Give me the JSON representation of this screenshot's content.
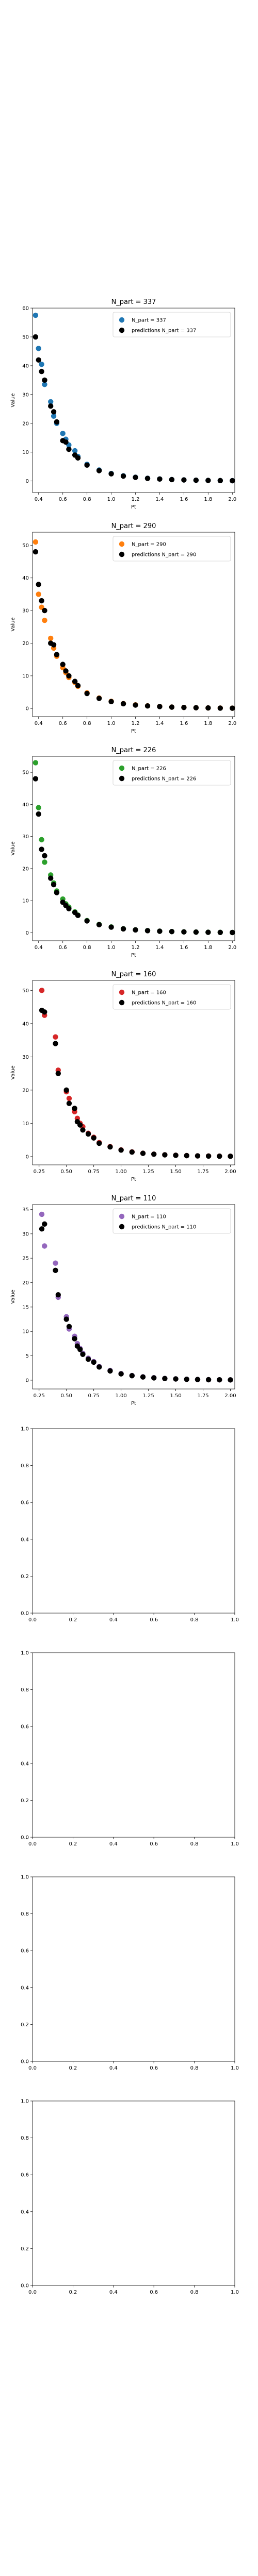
{
  "chart_data": [
    {
      "type": "scatter",
      "title": "N_part = 337",
      "xlabel": "Pt",
      "ylabel": "Value",
      "xlim": [
        0.35,
        2.02
      ],
      "ylim": [
        -4,
        60
      ],
      "xticks": [
        0.4,
        0.6,
        0.8,
        1.0,
        1.2,
        1.4,
        1.6,
        1.8,
        2.0
      ],
      "xticklabels": [
        "0.4",
        "0.6",
        "0.8",
        "1.0",
        "1.2",
        "1.4",
        "1.6",
        "1.8",
        "2.0"
      ],
      "yticks": [
        0,
        10,
        20,
        30,
        40,
        50,
        60
      ],
      "yticklabels": [
        "0",
        "10",
        "20",
        "30",
        "40",
        "50",
        "60"
      ],
      "legend_position": "upper-right",
      "series": [
        {
          "name": "N_part = 337",
          "color": "#1f77b4",
          "x": [
            0.375,
            0.4,
            0.425,
            0.45,
            0.5,
            0.525,
            0.55,
            0.6,
            0.625,
            0.65,
            0.7,
            0.725,
            0.8,
            0.9,
            1.0,
            1.1,
            1.2,
            1.3,
            1.4,
            1.5,
            1.6,
            1.7,
            1.8,
            1.9,
            2.0
          ],
          "y": [
            57.5,
            46.0,
            40.5,
            33.5,
            27.5,
            22.5,
            20.0,
            16.5,
            14.5,
            12.5,
            10.5,
            8.5,
            5.8,
            3.8,
            2.6,
            1.8,
            1.3,
            0.95,
            0.7,
            0.5,
            0.38,
            0.28,
            0.2,
            0.15,
            0.11
          ]
        },
        {
          "name": "predictions N_part = 337",
          "color": "#000000",
          "x": [
            0.375,
            0.4,
            0.425,
            0.45,
            0.5,
            0.525,
            0.55,
            0.6,
            0.625,
            0.65,
            0.7,
            0.725,
            0.8,
            0.9,
            1.0,
            1.1,
            1.2,
            1.3,
            1.4,
            1.5,
            1.6,
            1.7,
            1.8,
            1.9,
            2.0
          ],
          "y": [
            50.0,
            42.0,
            38.0,
            35.0,
            26.0,
            24.0,
            20.5,
            14.0,
            13.5,
            11.0,
            9.0,
            8.0,
            5.5,
            3.6,
            2.5,
            1.7,
            1.25,
            0.9,
            0.68,
            0.48,
            0.36,
            0.27,
            0.2,
            0.14,
            0.1
          ]
        }
      ]
    },
    {
      "type": "scatter",
      "title": "N_part = 290",
      "xlabel": "Pt",
      "ylabel": "Value",
      "xlim": [
        0.35,
        2.02
      ],
      "ylim": [
        -2.5,
        54
      ],
      "xticks": [
        0.4,
        0.6,
        0.8,
        1.0,
        1.2,
        1.4,
        1.6,
        1.8,
        2.0
      ],
      "xticklabels": [
        "0.4",
        "0.6",
        "0.8",
        "1.0",
        "1.2",
        "1.4",
        "1.6",
        "1.8",
        "2.0"
      ],
      "yticks": [
        0,
        10,
        20,
        30,
        40,
        50
      ],
      "yticklabels": [
        "0",
        "10",
        "20",
        "30",
        "40",
        "50"
      ],
      "legend_position": "upper-right",
      "series": [
        {
          "name": "N_part = 290",
          "color": "#ff7f0e",
          "x": [
            0.375,
            0.4,
            0.425,
            0.45,
            0.5,
            0.525,
            0.55,
            0.6,
            0.625,
            0.65,
            0.7,
            0.725,
            0.8,
            0.9,
            1.0,
            1.1,
            1.2,
            1.3,
            1.4,
            1.5,
            1.6,
            1.7,
            1.8,
            1.9,
            2.0
          ],
          "y": [
            51.0,
            35.0,
            31.0,
            27.0,
            21.5,
            18.5,
            16.0,
            12.5,
            11.0,
            9.5,
            8.0,
            6.8,
            4.8,
            3.2,
            2.2,
            1.5,
            1.1,
            0.8,
            0.6,
            0.43,
            0.32,
            0.24,
            0.17,
            0.13,
            0.1
          ]
        },
        {
          "name": "predictions N_part = 290",
          "color": "#000000",
          "x": [
            0.375,
            0.4,
            0.425,
            0.45,
            0.5,
            0.525,
            0.55,
            0.6,
            0.625,
            0.65,
            0.7,
            0.725,
            0.8,
            0.9,
            1.0,
            1.1,
            1.2,
            1.3,
            1.4,
            1.5,
            1.6,
            1.7,
            1.8,
            1.9,
            2.0
          ],
          "y": [
            48.0,
            38.0,
            33.0,
            30.0,
            20.0,
            19.5,
            16.5,
            13.5,
            11.5,
            10.0,
            8.3,
            7.0,
            4.6,
            3.1,
            2.1,
            1.45,
            1.05,
            0.78,
            0.58,
            0.42,
            0.31,
            0.23,
            0.17,
            0.12,
            0.09
          ]
        }
      ]
    },
    {
      "type": "scatter",
      "title": "N_part = 226",
      "xlabel": "Pt",
      "ylabel": "Value",
      "xlim": [
        0.35,
        2.02
      ],
      "ylim": [
        -2.5,
        55
      ],
      "xticks": [
        0.4,
        0.6,
        0.8,
        1.0,
        1.2,
        1.4,
        1.6,
        1.8,
        2.0
      ],
      "xticklabels": [
        "0.4",
        "0.6",
        "0.8",
        "1.0",
        "1.2",
        "1.4",
        "1.6",
        "1.8",
        "2.0"
      ],
      "yticks": [
        0,
        10,
        20,
        30,
        40,
        50
      ],
      "yticklabels": [
        "0",
        "10",
        "20",
        "30",
        "40",
        "50"
      ],
      "legend_position": "upper-right",
      "series": [
        {
          "name": "N_part = 226",
          "color": "#2ca02c",
          "x": [
            0.375,
            0.4,
            0.425,
            0.45,
            0.5,
            0.525,
            0.55,
            0.6,
            0.625,
            0.65,
            0.7,
            0.725,
            0.8,
            0.9,
            1.0,
            1.1,
            1.2,
            1.3,
            1.4,
            1.5,
            1.6,
            1.7,
            1.8,
            1.9,
            2.0
          ],
          "y": [
            53.0,
            39.0,
            29.0,
            22.0,
            18.0,
            15.5,
            13.0,
            10.5,
            9.0,
            8.0,
            6.5,
            5.5,
            3.8,
            2.6,
            1.8,
            1.25,
            0.9,
            0.66,
            0.48,
            0.36,
            0.27,
            0.2,
            0.15,
            0.11,
            0.08
          ]
        },
        {
          "name": "predictions N_part = 226",
          "color": "#000000",
          "x": [
            0.375,
            0.4,
            0.425,
            0.45,
            0.5,
            0.525,
            0.55,
            0.6,
            0.625,
            0.65,
            0.7,
            0.725,
            0.8,
            0.9,
            1.0,
            1.1,
            1.2,
            1.3,
            1.4,
            1.5,
            1.6,
            1.7,
            1.8,
            1.9,
            2.0
          ],
          "y": [
            48.0,
            37.0,
            26.0,
            24.0,
            17.0,
            15.0,
            12.5,
            9.5,
            8.5,
            7.5,
            6.3,
            5.4,
            3.7,
            2.5,
            1.75,
            1.2,
            0.88,
            0.64,
            0.47,
            0.35,
            0.26,
            0.19,
            0.14,
            0.1,
            0.08
          ]
        }
      ]
    },
    {
      "type": "scatter",
      "title": "N_part = 160",
      "xlabel": "Pt",
      "ylabel": "Value",
      "xlim": [
        0.19,
        2.04
      ],
      "ylim": [
        -2.5,
        53
      ],
      "xticks": [
        0.25,
        0.5,
        0.75,
        1.0,
        1.25,
        1.5,
        1.75,
        2.0
      ],
      "xticklabels": [
        "0.25",
        "0.50",
        "0.75",
        "1.00",
        "1.25",
        "1.50",
        "1.75",
        "2.00"
      ],
      "yticks": [
        0,
        10,
        20,
        30,
        40,
        50
      ],
      "yticklabels": [
        "0",
        "10",
        "20",
        "30",
        "40",
        "50"
      ],
      "legend_position": "upper-right",
      "series": [
        {
          "name": "N_part = 160",
          "color": "#d62728",
          "x": [
            0.275,
            0.3,
            0.4,
            0.425,
            0.5,
            0.525,
            0.575,
            0.6,
            0.625,
            0.65,
            0.7,
            0.75,
            0.8,
            0.9,
            1.0,
            1.1,
            1.2,
            1.3,
            1.4,
            1.5,
            1.6,
            1.7,
            1.8,
            1.9,
            2.0
          ],
          "y": [
            50.0,
            42.5,
            36.0,
            26.0,
            19.5,
            17.5,
            13.5,
            11.5,
            10.0,
            9.0,
            7.0,
            5.8,
            4.2,
            3.0,
            2.0,
            1.4,
            1.0,
            0.73,
            0.53,
            0.39,
            0.29,
            0.21,
            0.16,
            0.12,
            0.09
          ]
        },
        {
          "name": "predictions N_part = 160",
          "color": "#000000",
          "x": [
            0.275,
            0.3,
            0.4,
            0.425,
            0.5,
            0.525,
            0.575,
            0.6,
            0.625,
            0.65,
            0.7,
            0.75,
            0.8,
            0.9,
            1.0,
            1.1,
            1.2,
            1.3,
            1.4,
            1.5,
            1.6,
            1.7,
            1.8,
            1.9,
            2.0
          ],
          "y": [
            44.0,
            43.5,
            34.0,
            25.0,
            20.0,
            16.0,
            14.5,
            10.5,
            9.5,
            8.0,
            6.8,
            5.6,
            4.0,
            2.9,
            1.95,
            1.35,
            0.97,
            0.71,
            0.52,
            0.38,
            0.28,
            0.2,
            0.15,
            0.11,
            0.08
          ]
        }
      ]
    },
    {
      "type": "scatter",
      "title": "N_part = 110",
      "xlabel": "Pt",
      "ylabel": "Value",
      "xlim": [
        0.19,
        2.04
      ],
      "ylim": [
        -1.8,
        36
      ],
      "xticks": [
        0.25,
        0.5,
        0.75,
        1.0,
        1.25,
        1.5,
        1.75,
        2.0
      ],
      "xticklabels": [
        "0.25",
        "0.50",
        "0.75",
        "1.00",
        "1.25",
        "1.50",
        "1.75",
        "2.00"
      ],
      "yticks": [
        0,
        5,
        10,
        15,
        20,
        25,
        30,
        35
      ],
      "yticklabels": [
        "0",
        "5",
        "10",
        "15",
        "20",
        "25",
        "30",
        "35"
      ],
      "legend_position": "upper-right",
      "series": [
        {
          "name": "N_part = 110",
          "color": "#9467bd",
          "x": [
            0.275,
            0.3,
            0.4,
            0.425,
            0.5,
            0.525,
            0.575,
            0.6,
            0.625,
            0.65,
            0.7,
            0.75,
            0.8,
            0.9,
            1.0,
            1.1,
            1.2,
            1.3,
            1.4,
            1.5,
            1.6,
            1.7,
            1.8,
            1.9,
            2.0
          ],
          "y": [
            34.0,
            27.5,
            24.0,
            17.0,
            13.0,
            10.5,
            9.0,
            7.5,
            6.5,
            5.5,
            4.5,
            3.8,
            2.8,
            2.0,
            1.35,
            0.95,
            0.68,
            0.5,
            0.36,
            0.27,
            0.2,
            0.15,
            0.11,
            0.08,
            0.06
          ]
        },
        {
          "name": "predictions N_part = 110",
          "color": "#000000",
          "x": [
            0.275,
            0.3,
            0.4,
            0.425,
            0.5,
            0.525,
            0.575,
            0.6,
            0.625,
            0.65,
            0.7,
            0.75,
            0.8,
            0.9,
            1.0,
            1.1,
            1.2,
            1.3,
            1.4,
            1.5,
            1.6,
            1.7,
            1.8,
            1.9,
            2.0
          ],
          "y": [
            31.0,
            32.0,
            22.5,
            17.5,
            12.5,
            11.0,
            8.5,
            7.0,
            6.3,
            5.3,
            4.3,
            3.7,
            2.7,
            1.9,
            1.3,
            0.92,
            0.66,
            0.48,
            0.35,
            0.26,
            0.19,
            0.14,
            0.1,
            0.08,
            0.06
          ]
        }
      ]
    },
    {
      "type": "scatter",
      "title": "",
      "xlabel": "",
      "ylabel": "",
      "xlim": [
        0,
        1
      ],
      "ylim": [
        0,
        1
      ],
      "xticks": [
        0,
        0.2,
        0.4,
        0.6,
        0.8,
        1.0
      ],
      "xticklabels": [
        "0.0",
        "0.2",
        "0.4",
        "0.6",
        "0.8",
        "1.0"
      ],
      "yticks": [
        0,
        0.2,
        0.4,
        0.6,
        0.8,
        1.0
      ],
      "yticklabels": [
        "0.0",
        "0.2",
        "0.4",
        "0.6",
        "0.8",
        "1.0"
      ],
      "series": []
    },
    {
      "type": "scatter",
      "title": "",
      "xlabel": "",
      "ylabel": "",
      "xlim": [
        0,
        1
      ],
      "ylim": [
        0,
        1
      ],
      "xticks": [
        0,
        0.2,
        0.4,
        0.6,
        0.8,
        1.0
      ],
      "xticklabels": [
        "0.0",
        "0.2",
        "0.4",
        "0.6",
        "0.8",
        "1.0"
      ],
      "yticks": [
        0,
        0.2,
        0.4,
        0.6,
        0.8,
        1.0
      ],
      "yticklabels": [
        "0.0",
        "0.2",
        "0.4",
        "0.6",
        "0.8",
        "1.0"
      ],
      "series": []
    },
    {
      "type": "scatter",
      "title": "",
      "xlabel": "",
      "ylabel": "",
      "xlim": [
        0,
        1
      ],
      "ylim": [
        0,
        1
      ],
      "xticks": [
        0,
        0.2,
        0.4,
        0.6,
        0.8,
        1.0
      ],
      "xticklabels": [
        "0.0",
        "0.2",
        "0.4",
        "0.6",
        "0.8",
        "1.0"
      ],
      "yticks": [
        0,
        0.2,
        0.4,
        0.6,
        0.8,
        1.0
      ],
      "yticklabels": [
        "0.0",
        "0.2",
        "0.4",
        "0.6",
        "0.8",
        "1.0"
      ],
      "series": []
    },
    {
      "type": "scatter",
      "title": "",
      "xlabel": "",
      "ylabel": "",
      "xlim": [
        0,
        1
      ],
      "ylim": [
        0,
        1
      ],
      "xticks": [
        0,
        0.2,
        0.4,
        0.6,
        0.8,
        1.0
      ],
      "xticklabels": [
        "0.0",
        "0.2",
        "0.4",
        "0.6",
        "0.8",
        "1.0"
      ],
      "yticks": [
        0,
        0.2,
        0.4,
        0.6,
        0.8,
        1.0
      ],
      "yticklabels": [
        "0.0",
        "0.2",
        "0.4",
        "0.6",
        "0.8",
        "1.0"
      ],
      "series": []
    }
  ]
}
